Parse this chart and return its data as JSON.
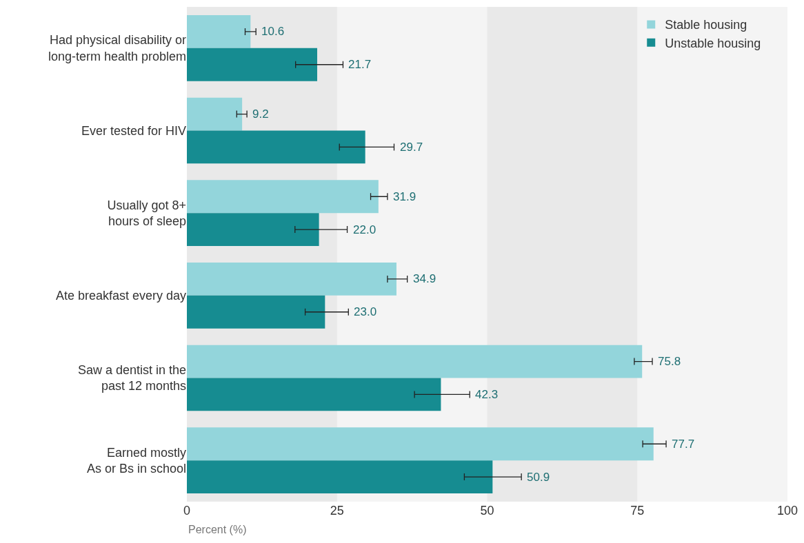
{
  "chart_data": {
    "type": "bar",
    "orientation": "horizontal",
    "categories": [
      "Had physical disability or\nlong-term health problem",
      "Ever tested for HIV",
      "Usually got 8+\nhours of sleep",
      "Ate breakfast every day",
      "Saw a dentist in the\npast 12 months",
      "Earned mostly\nAs or Bs in school"
    ],
    "series": [
      {
        "name": "Stable housing",
        "color": "#93d5db",
        "values": [
          10.6,
          9.2,
          31.9,
          34.9,
          75.8,
          77.7
        ],
        "errors": [
          [
            9.7,
            11.5
          ],
          [
            8.3,
            10.0
          ],
          [
            30.6,
            33.4
          ],
          [
            33.4,
            36.7
          ],
          [
            74.5,
            77.5
          ],
          [
            75.9,
            79.8
          ]
        ],
        "value_labels": [
          "10.6",
          "9.2",
          "31.9",
          "34.9",
          "75.8",
          "77.7"
        ]
      },
      {
        "name": "Unstable housing",
        "color": "#168c91",
        "values": [
          21.7,
          29.7,
          22.0,
          23.0,
          42.3,
          50.9
        ],
        "errors": [
          [
            18.1,
            26.0
          ],
          [
            25.4,
            34.5
          ],
          [
            18.0,
            26.7
          ],
          [
            19.7,
            26.9
          ],
          [
            37.9,
            47.1
          ],
          [
            46.2,
            55.7
          ]
        ],
        "value_labels": [
          "21.7",
          "29.7",
          "22.0",
          "23.0",
          "42.3",
          "50.9"
        ]
      }
    ],
    "xlabel": "Percent (%)",
    "xlim": [
      0,
      100
    ],
    "xticks": [
      0,
      25,
      50,
      75,
      100
    ],
    "bands": [
      {
        "axis": "x",
        "from": 0,
        "to": 25,
        "color": "#e9e9e9"
      },
      {
        "axis": "x",
        "from": 50,
        "to": 75,
        "color": "#e9e9e9"
      }
    ],
    "grid": false,
    "legend": "top right"
  }
}
